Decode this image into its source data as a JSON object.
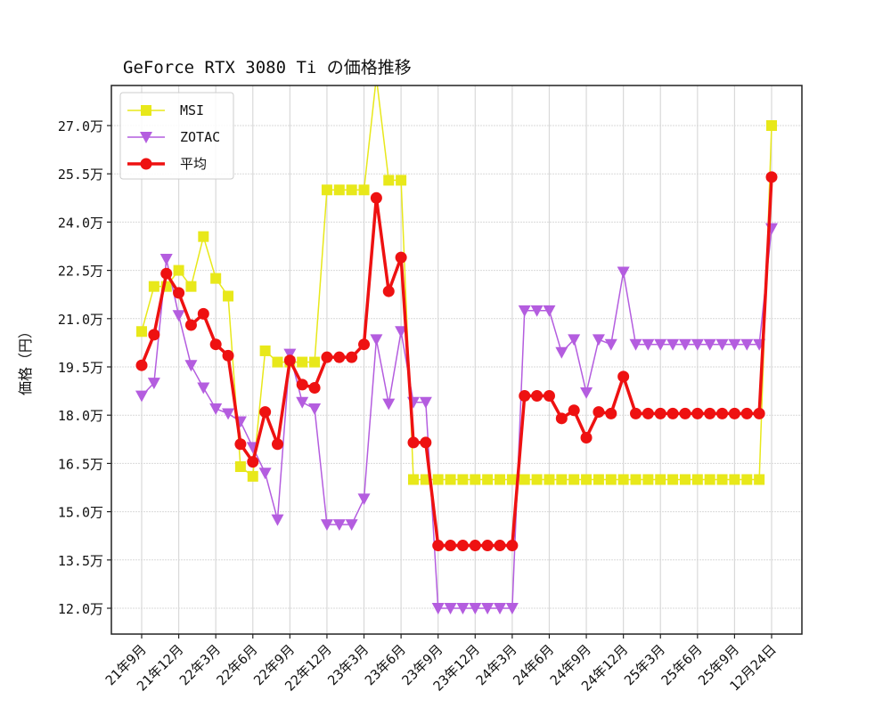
{
  "chart_data": {
    "type": "line",
    "title": "GeForce RTX 3080 Ti の価格推移",
    "xlabel": "",
    "ylabel": "価格（円）",
    "ylim": [
      11.4,
      28.4
    ],
    "y_unit_suffix": "万",
    "yticks": [
      12.0,
      13.5,
      15.0,
      16.5,
      18.0,
      19.5,
      21.0,
      22.5,
      24.0,
      25.5,
      27.0
    ],
    "ytick_labels": [
      "12.0万",
      "13.5万",
      "15.0万",
      "16.5万",
      "18.0万",
      "19.5万",
      "21.0万",
      "22.5万",
      "24.0万",
      "25.5万",
      "27.0万"
    ],
    "xtick_labels": [
      "21年9月",
      "21年12月",
      "22年3月",
      "22年6月",
      "22年9月",
      "22年12月",
      "23年3月",
      "23年6月",
      "23年9月",
      "23年12月",
      "24年3月",
      "24年6月",
      "24年9月",
      "24年12月",
      "25年3月",
      "25年6月",
      "25年9月",
      "12月24日"
    ],
    "xtick_index": [
      0,
      3,
      6,
      9,
      12,
      15,
      18,
      21,
      24,
      27,
      30,
      33,
      36,
      39,
      42,
      45,
      48,
      51
    ],
    "grid": true,
    "legend_position": "upper left",
    "x": [
      0,
      1,
      2,
      3,
      4,
      5,
      6,
      7,
      8,
      9,
      10,
      11,
      12,
      13,
      14,
      15,
      16,
      17,
      18,
      19,
      20,
      21,
      22,
      23,
      24,
      25,
      26,
      27,
      28,
      29,
      30,
      31,
      32,
      33,
      34,
      35,
      36,
      37,
      38,
      39,
      40,
      41,
      42,
      43,
      44,
      45,
      46,
      47,
      48,
      49,
      50,
      51
    ],
    "series": [
      {
        "name": "MSI",
        "color": "#e8e81a",
        "marker": "square",
        "line_width": 1.5,
        "values": [
          20.6,
          22.0,
          22.0,
          22.5,
          22.0,
          23.55,
          22.25,
          21.7,
          16.4,
          16.1,
          20.0,
          19.65,
          19.65,
          19.65,
          19.65,
          25.0,
          25.0,
          25.0,
          25.0,
          28.5,
          25.3,
          25.3,
          16.0,
          16.0,
          16.0,
          16.0,
          16.0,
          16.0,
          16.0,
          16.0,
          16.0,
          16.0,
          16.0,
          16.0,
          16.0,
          16.0,
          16.0,
          16.0,
          16.0,
          16.0,
          16.0,
          16.0,
          16.0,
          16.0,
          16.0,
          16.0,
          16.0,
          16.0,
          16.0,
          16.0,
          16.0,
          27.0
        ]
      },
      {
        "name": "ZOTAC",
        "color": "#b45ddf",
        "marker": "triangle-down",
        "line_width": 1.5,
        "values": [
          18.6,
          19.0,
          22.85,
          21.1,
          19.55,
          18.85,
          18.2,
          18.05,
          17.8,
          17.0,
          16.2,
          14.75,
          19.9,
          18.4,
          18.2,
          14.6,
          14.6,
          14.6,
          15.4,
          20.35,
          18.35,
          20.6,
          18.4,
          18.4,
          12.0,
          12.0,
          12.0,
          12.0,
          12.0,
          12.0,
          12.0,
          21.25,
          21.25,
          21.25,
          19.95,
          20.35,
          18.7,
          20.35,
          20.2,
          22.45,
          20.2,
          20.2,
          20.2,
          20.2,
          20.2,
          20.2,
          20.2,
          20.2,
          20.2,
          20.2,
          20.2,
          23.8
        ]
      },
      {
        "name": "平均",
        "color": "#ee1111",
        "marker": "circle",
        "line_width": 3.5,
        "values": [
          19.55,
          20.5,
          22.4,
          21.8,
          20.8,
          21.15,
          20.2,
          19.85,
          17.1,
          16.55,
          18.1,
          17.1,
          19.7,
          18.95,
          18.85,
          19.8,
          19.8,
          19.8,
          20.2,
          24.75,
          21.85,
          22.9,
          17.15,
          17.15,
          13.95,
          13.95,
          13.95,
          13.95,
          13.95,
          13.95,
          13.95,
          18.6,
          18.6,
          18.6,
          17.9,
          18.15,
          17.3,
          18.1,
          18.05,
          19.2,
          18.05,
          18.05,
          18.05,
          18.05,
          18.05,
          18.05,
          18.05,
          18.05,
          18.05,
          18.05,
          18.05,
          25.4
        ]
      }
    ]
  }
}
